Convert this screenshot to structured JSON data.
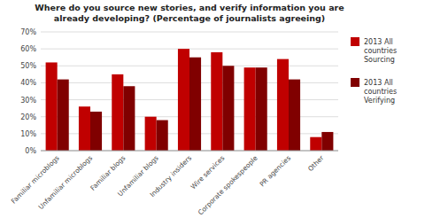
{
  "chart_data": {
    "type": "bar",
    "title": "Where do you source new stories, and verify information you are\nalready developing?  (Percentage of journalists agreeing)",
    "categories": [
      "Familiar microblogs",
      "Unfamiliar microblogs",
      "Familiar blogs",
      "Unfamiliar blogs",
      "Industry insiders",
      "Wire services",
      "Corporate spokespeople",
      "PR agencies",
      "Other"
    ],
    "series": [
      {
        "name": "2013 All\ncountries\nSourcing",
        "color": "#c00000",
        "values": [
          52,
          26,
          45,
          20,
          60,
          58,
          49,
          54,
          8
        ]
      },
      {
        "name": "2013 All\ncountries\nVerifying",
        "color": "#800000",
        "values": [
          42,
          23,
          38,
          18,
          55,
          50,
          49,
          42,
          11
        ]
      }
    ],
    "ylim": [
      0,
      70
    ],
    "yticks": [
      {
        "value": 0,
        "label": "0%"
      },
      {
        "value": 10,
        "label": "10%"
      },
      {
        "value": 20,
        "label": "20%"
      },
      {
        "value": 30,
        "label": "30%"
      },
      {
        "value": 40,
        "label": "40%"
      },
      {
        "value": 50,
        "label": "50%"
      },
      {
        "value": 60,
        "label": "60%"
      },
      {
        "value": 70,
        "label": "70%"
      }
    ],
    "grid": true,
    "legend": "right"
  }
}
